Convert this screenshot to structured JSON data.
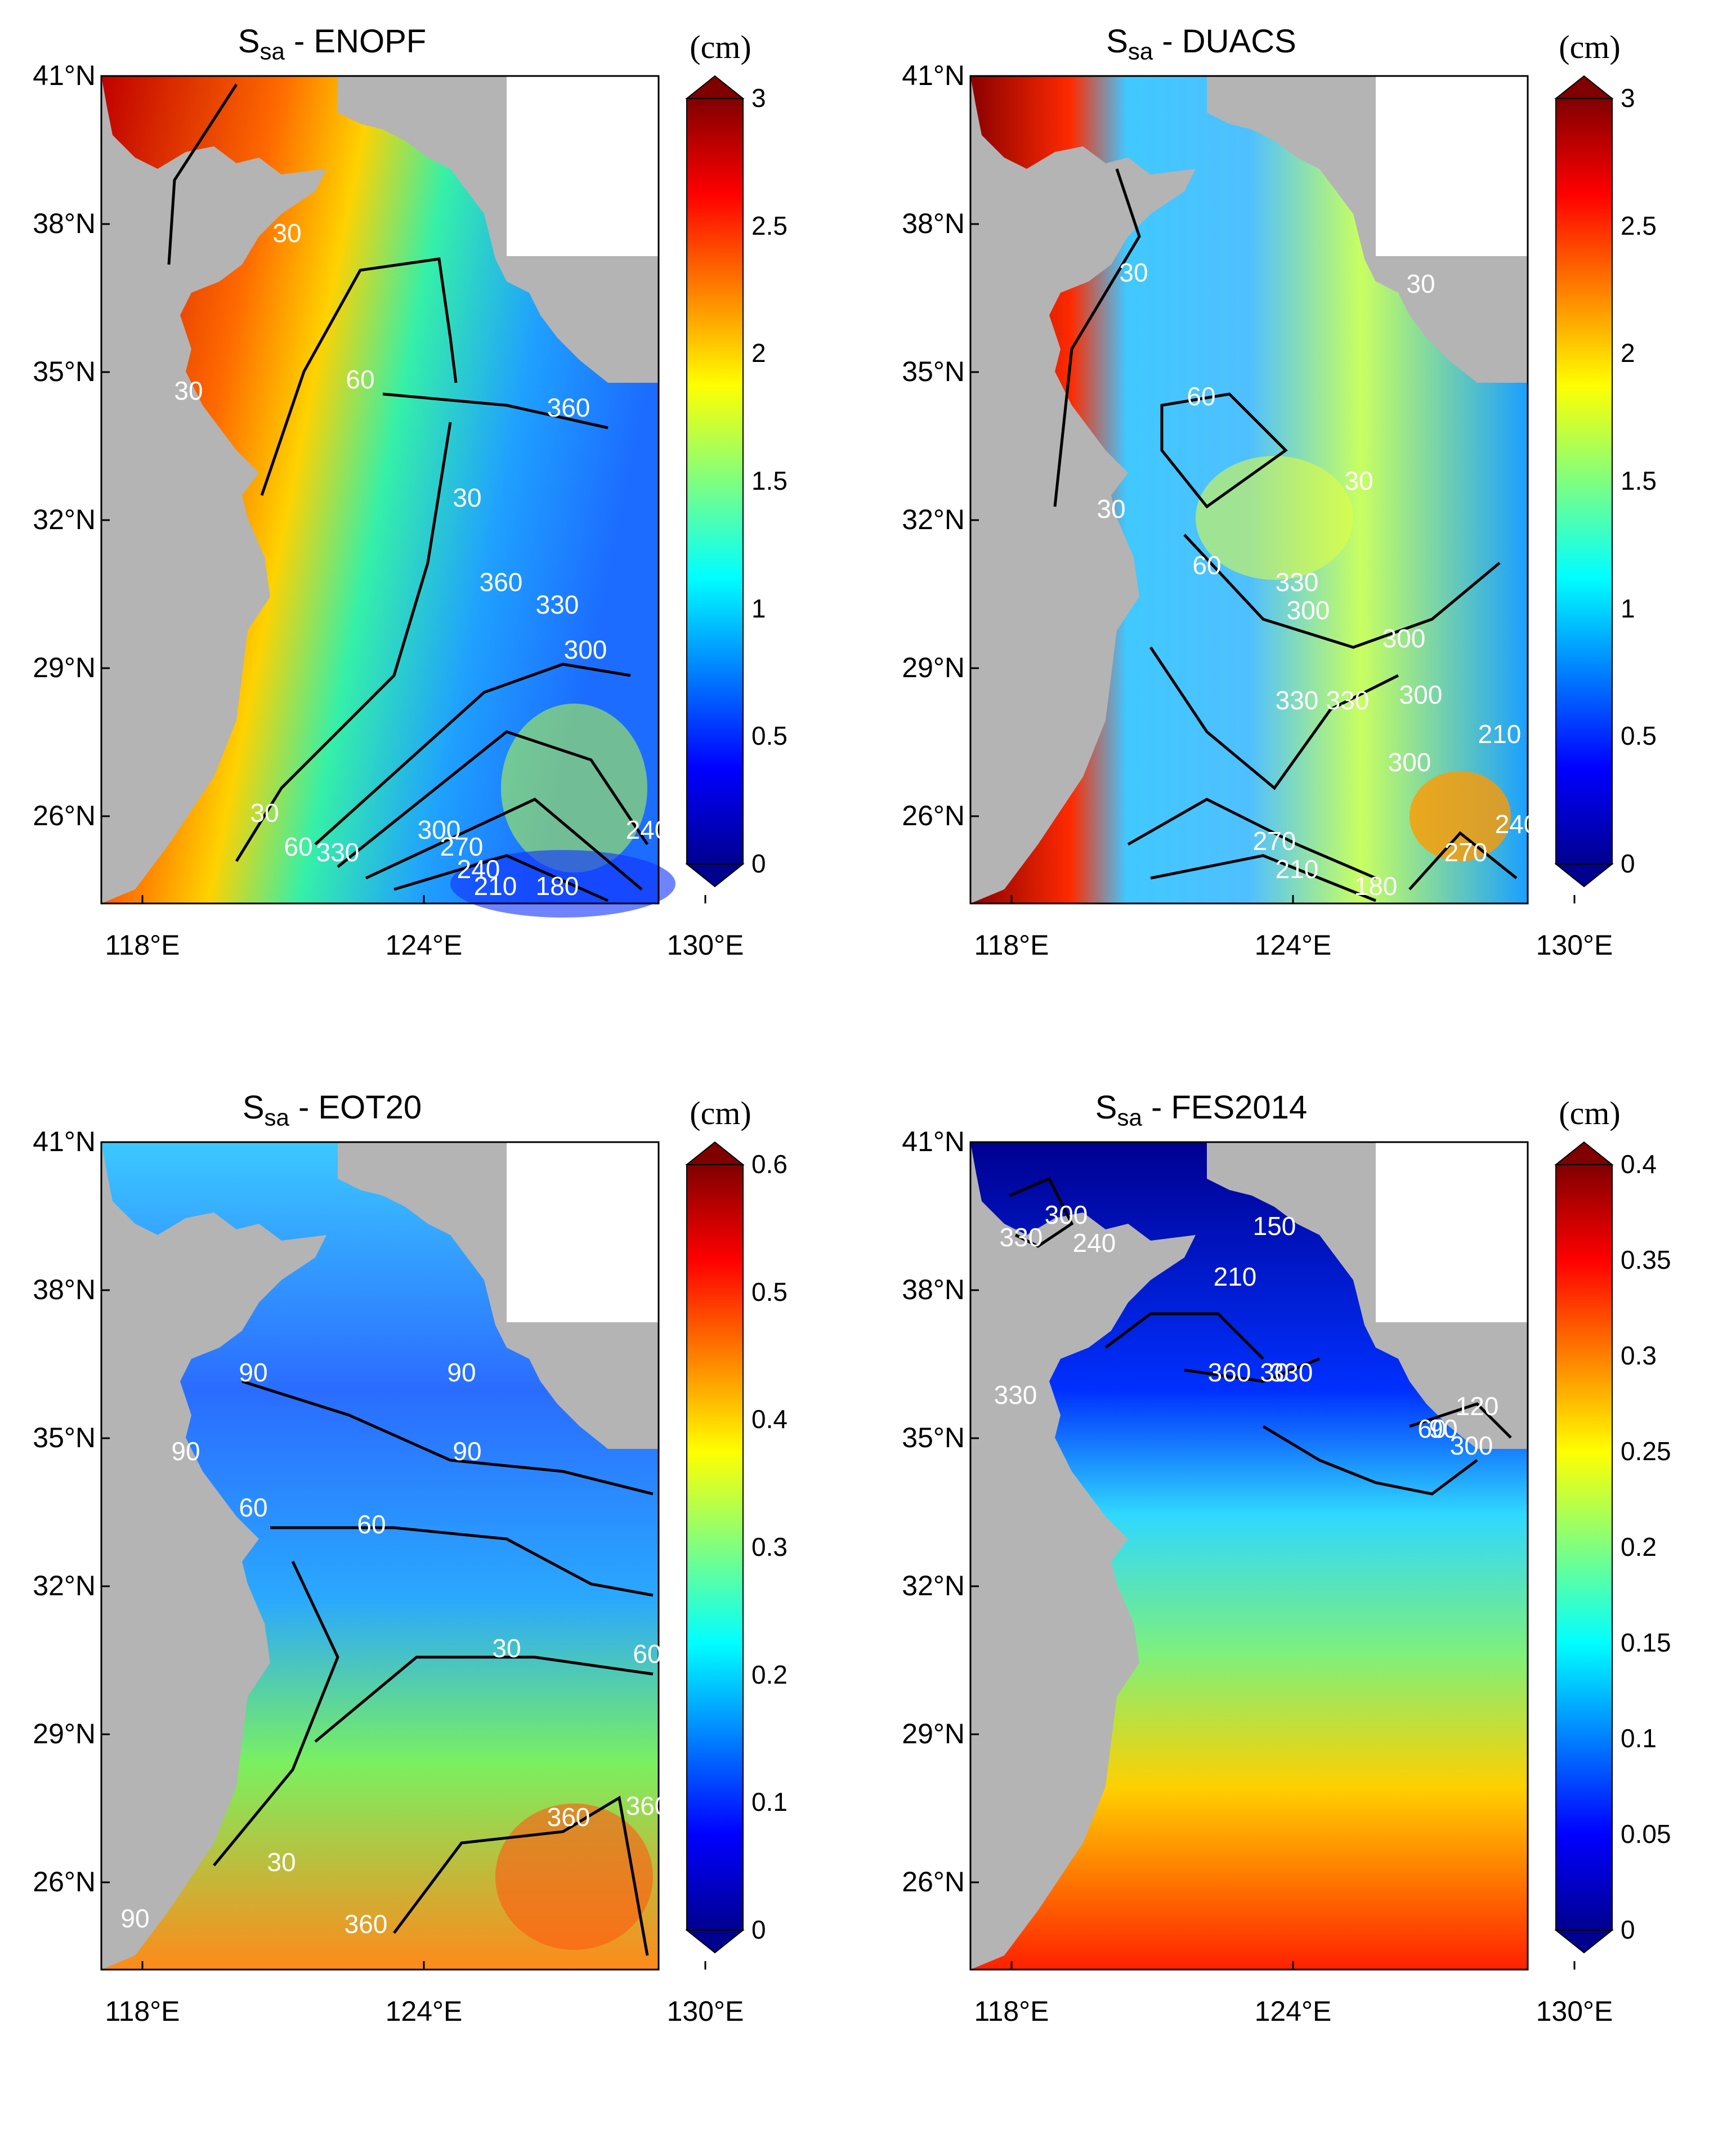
{
  "panels": [
    {
      "title_main": "S",
      "title_sub": "sa",
      "title_rest": " - ENOPF",
      "unit": "(cm)",
      "colorbar_ticks": [
        "3",
        "2.5",
        "2",
        "1.5",
        "1",
        "0.5",
        "0"
      ],
      "contour_labels": [
        "30",
        "30",
        "60",
        "30",
        "360",
        "330",
        "300",
        "30",
        "60",
        "330",
        "300",
        "270",
        "240",
        "210",
        "180",
        "240",
        "360"
      ]
    },
    {
      "title_main": "S",
      "title_sub": "sa",
      "title_rest": " - DUACS",
      "unit": "(cm)",
      "colorbar_ticks": [
        "3",
        "2.5",
        "2",
        "1.5",
        "1",
        "0.5",
        "0"
      ],
      "contour_labels": [
        "30",
        "30",
        "60",
        "30",
        "30",
        "60",
        "330",
        "300",
        "300",
        "330",
        "330",
        "300",
        "270",
        "210",
        "180",
        "270",
        "240",
        "300",
        "210"
      ]
    },
    {
      "title_main": "S",
      "title_sub": "sa",
      "title_rest": " - EOT20",
      "unit": "(cm)",
      "colorbar_ticks": [
        "0.6",
        "0.5",
        "0.4",
        "0.3",
        "0.2",
        "0.1",
        "0"
      ],
      "contour_labels": [
        "90",
        "90",
        "90",
        "60",
        "90",
        "60",
        "30",
        "30",
        "360",
        "360",
        "360",
        "60",
        "90"
      ]
    },
    {
      "title_main": "S",
      "title_sub": "sa",
      "title_rest": " - FES2014",
      "unit": "(cm)",
      "colorbar_ticks": [
        "0.4",
        "0.35",
        "0.3",
        "0.25",
        "0.2",
        "0.15",
        "0.1",
        "0.05",
        "0"
      ],
      "contour_labels": [
        "330",
        "300",
        "240",
        "210",
        "330",
        "360",
        "30",
        "330",
        "90",
        "60",
        "120",
        "300",
        "150"
      ]
    }
  ],
  "y_ticks": [
    "41°N",
    "38°N",
    "35°N",
    "32°N",
    "29°N",
    "26°N"
  ],
  "x_ticks": [
    "118°E",
    "124°E",
    "130°E"
  ],
  "colors": {
    "land": "#b4b4b4",
    "contour": "#000000",
    "contour_label": "#ffffff",
    "jet": [
      "#00008f",
      "#0000ff",
      "#00ffff",
      "#ffff00",
      "#ff0000",
      "#800000"
    ]
  }
}
